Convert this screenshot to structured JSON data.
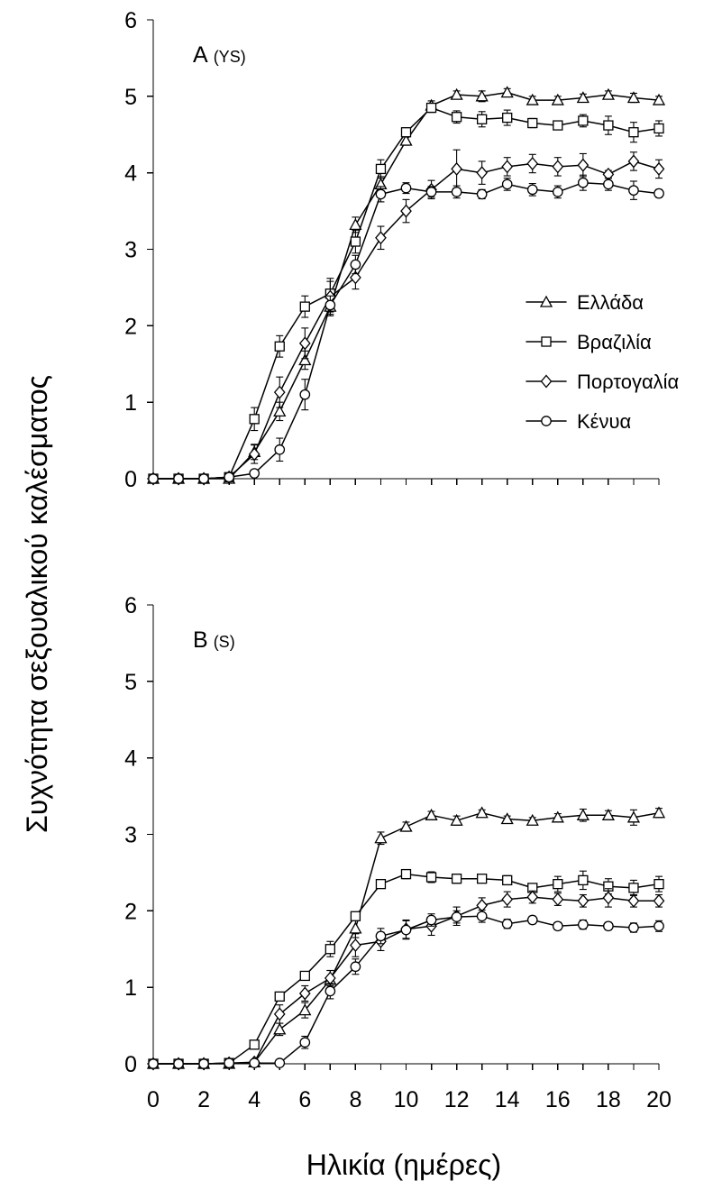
{
  "figure": {
    "ylabel": "Συχνότητα σεξουαλικού καλέσματος",
    "xlabel": "Ηλικία (ημέρες)"
  },
  "legend": {
    "items": [
      {
        "label": "Ελλάδα",
        "marker": "triangle"
      },
      {
        "label": "Βραζιλία",
        "marker": "square"
      },
      {
        "label": "Πορτογαλία",
        "marker": "diamond"
      },
      {
        "label": "Κένυα",
        "marker": "circle"
      }
    ]
  },
  "chart_data": [
    {
      "type": "line",
      "panel": "A",
      "panel_label": "A",
      "panel_sublabel": "(YS)",
      "xlabel": "Ηλικία (ημέρες)",
      "ylabel": "Συχνότητα σεξουαλικού καλέσματος",
      "xlim": [
        0,
        20
      ],
      "ylim": [
        0,
        6
      ],
      "yticks": [
        0,
        1,
        2,
        3,
        4,
        5,
        6
      ],
      "xticks": [
        0,
        2,
        4,
        6,
        8,
        10,
        12,
        14,
        16,
        18,
        20
      ],
      "show_x_tick_labels": false,
      "grid": false,
      "legend_position": "right",
      "x": [
        0,
        1,
        2,
        3,
        4,
        5,
        6,
        7,
        8,
        9,
        10,
        11,
        12,
        13,
        14,
        15,
        16,
        17,
        18,
        19,
        20
      ],
      "series": [
        {
          "name": "Ελλάδα",
          "marker": "triangle",
          "values": [
            0,
            0,
            0,
            0,
            0.35,
            0.88,
            1.55,
            2.25,
            3.32,
            3.85,
            4.42,
            4.88,
            5.02,
            5.0,
            5.05,
            4.95,
            4.95,
            4.98,
            5.02,
            4.98,
            4.95
          ],
          "errors": [
            0,
            0,
            0,
            0,
            0.1,
            0.12,
            0.12,
            0.12,
            0.1,
            0.1,
            0.06,
            0.06,
            0.05,
            0.07,
            0.05,
            0.05,
            0.05,
            0.05,
            0.05,
            0.06,
            0.05
          ]
        },
        {
          "name": "Βραζιλία",
          "marker": "square",
          "values": [
            0,
            0,
            0,
            0.02,
            0.78,
            1.73,
            2.25,
            2.42,
            3.1,
            4.05,
            4.53,
            4.85,
            4.73,
            4.7,
            4.72,
            4.65,
            4.62,
            4.68,
            4.62,
            4.53,
            4.58
          ],
          "errors": [
            0,
            0,
            0,
            0.02,
            0.15,
            0.14,
            0.14,
            0.2,
            0.15,
            0.12,
            0.06,
            0.06,
            0.08,
            0.1,
            0.1,
            0.06,
            0.05,
            0.08,
            0.12,
            0.13,
            0.1
          ]
        },
        {
          "name": "Πορτογαλία",
          "marker": "diamond",
          "values": [
            0,
            0,
            0,
            0.02,
            0.32,
            1.13,
            1.77,
            2.38,
            2.63,
            3.15,
            3.5,
            3.78,
            4.05,
            4.0,
            4.08,
            4.12,
            4.08,
            4.1,
            3.98,
            4.15,
            4.05
          ],
          "errors": [
            0,
            0,
            0,
            0.02,
            0.12,
            0.2,
            0.2,
            0.2,
            0.15,
            0.15,
            0.15,
            0.12,
            0.25,
            0.15,
            0.12,
            0.12,
            0.12,
            0.15,
            0.05,
            0.12,
            0.12
          ]
        },
        {
          "name": "Κένυα",
          "marker": "circle",
          "values": [
            0,
            0,
            0,
            0.02,
            0.07,
            0.38,
            1.1,
            2.27,
            2.8,
            3.72,
            3.8,
            3.75,
            3.75,
            3.72,
            3.85,
            3.78,
            3.75,
            3.87,
            3.85,
            3.77,
            3.73
          ],
          "errors": [
            0,
            0,
            0,
            0.02,
            0.03,
            0.15,
            0.2,
            0.12,
            0.12,
            0.1,
            0.07,
            0.07,
            0.08,
            0.06,
            0.08,
            0.08,
            0.08,
            0.1,
            0.08,
            0.12,
            0.05
          ]
        }
      ]
    },
    {
      "type": "line",
      "panel": "B",
      "panel_label": "B",
      "panel_sublabel": "(S)",
      "xlabel": "Ηλικία (ημέρες)",
      "ylabel": "Συχνότητα σεξουαλικού καλέσματος",
      "xlim": [
        0,
        20
      ],
      "ylim": [
        0,
        6
      ],
      "yticks": [
        0,
        1,
        2,
        3,
        4,
        5,
        6
      ],
      "xticks": [
        0,
        2,
        4,
        6,
        8,
        10,
        12,
        14,
        16,
        18,
        20
      ],
      "show_x_tick_labels": true,
      "grid": false,
      "x": [
        0,
        1,
        2,
        3,
        4,
        5,
        6,
        7,
        8,
        9,
        10,
        11,
        12,
        13,
        14,
        15,
        16,
        17,
        18,
        19,
        20
      ],
      "series": [
        {
          "name": "Ελλάδα",
          "marker": "triangle",
          "values": [
            0,
            0,
            0,
            0,
            0.02,
            0.45,
            0.7,
            1.1,
            1.77,
            2.95,
            3.1,
            3.25,
            3.18,
            3.28,
            3.2,
            3.18,
            3.22,
            3.25,
            3.25,
            3.22,
            3.28
          ],
          "errors": [
            0,
            0,
            0,
            0,
            0.02,
            0.08,
            0.1,
            0.12,
            0.12,
            0.08,
            0.06,
            0.05,
            0.06,
            0.04,
            0.04,
            0.04,
            0.05,
            0.08,
            0.06,
            0.1,
            0.06
          ]
        },
        {
          "name": "Βραζιλία",
          "marker": "square",
          "values": [
            0,
            0,
            0,
            0.01,
            0.25,
            0.88,
            1.15,
            1.5,
            1.93,
            2.35,
            2.48,
            2.44,
            2.42,
            2.42,
            2.4,
            2.3,
            2.35,
            2.4,
            2.32,
            2.3,
            2.35
          ],
          "errors": [
            0,
            0,
            0,
            0.01,
            0.04,
            0.05,
            0.05,
            0.1,
            0.05,
            0.05,
            0.06,
            0.07,
            0.06,
            0.05,
            0.06,
            0.05,
            0.1,
            0.12,
            0.1,
            0.1,
            0.1
          ]
        },
        {
          "name": "Πορτογαλία",
          "marker": "diamond",
          "values": [
            0,
            0,
            0,
            0.01,
            0.02,
            0.65,
            0.92,
            1.12,
            1.55,
            1.6,
            1.76,
            1.8,
            1.93,
            2.07,
            2.15,
            2.18,
            2.15,
            2.13,
            2.17,
            2.13,
            2.13
          ],
          "errors": [
            0,
            0,
            0,
            0.01,
            0.02,
            0.12,
            0.1,
            0.1,
            0.15,
            0.12,
            0.12,
            0.12,
            0.12,
            0.1,
            0.1,
            0.08,
            0.08,
            0.08,
            0.12,
            0.08,
            0.08
          ]
        },
        {
          "name": "Κένυα",
          "marker": "circle",
          "values": [
            0,
            0,
            0,
            0.01,
            0.01,
            0.01,
            0.28,
            0.95,
            1.27,
            1.67,
            1.75,
            1.88,
            1.92,
            1.93,
            1.83,
            1.88,
            1.8,
            1.82,
            1.8,
            1.78,
            1.8
          ],
          "errors": [
            0,
            0,
            0,
            0.01,
            0.01,
            0.01,
            0.08,
            0.1,
            0.1,
            0.1,
            0.12,
            0.08,
            0.08,
            0.08,
            0.06,
            0.05,
            0.05,
            0.06,
            0.05,
            0.06,
            0.07
          ]
        }
      ]
    }
  ]
}
